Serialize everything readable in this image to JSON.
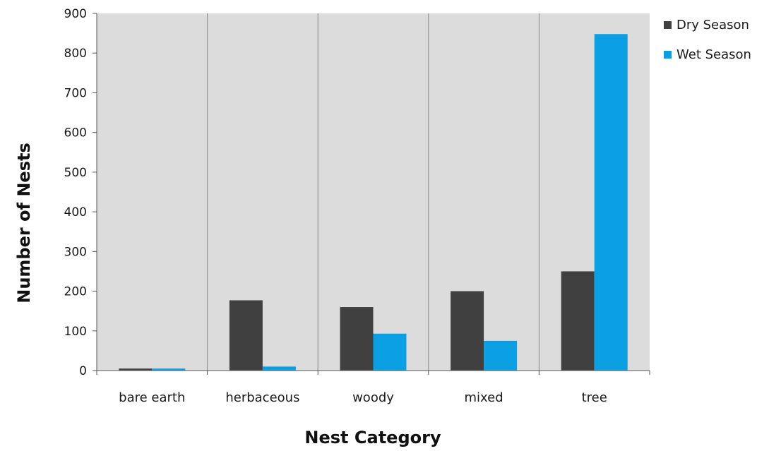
{
  "chart_data": {
    "type": "bar",
    "title": "",
    "xlabel": "Nest Category",
    "ylabel": "Number of Nests",
    "categories": [
      "bare earth",
      "herbaceous",
      "woody",
      "mixed",
      "tree"
    ],
    "series": [
      {
        "name": "Dry Season",
        "color": "#404040",
        "values": [
          5,
          177,
          160,
          200,
          250
        ]
      },
      {
        "name": "Wet Season",
        "color": "#0ba0e3",
        "values": [
          5,
          10,
          93,
          75,
          848
        ]
      }
    ],
    "ylim": [
      0,
      900
    ],
    "yticks": [
      "0",
      "100",
      "200",
      "300",
      "400",
      "500",
      "600",
      "700",
      "800",
      "900"
    ],
    "grid": false,
    "category_dividers": true,
    "plot_background": "#dcdcdc",
    "legend_position": "right"
  }
}
